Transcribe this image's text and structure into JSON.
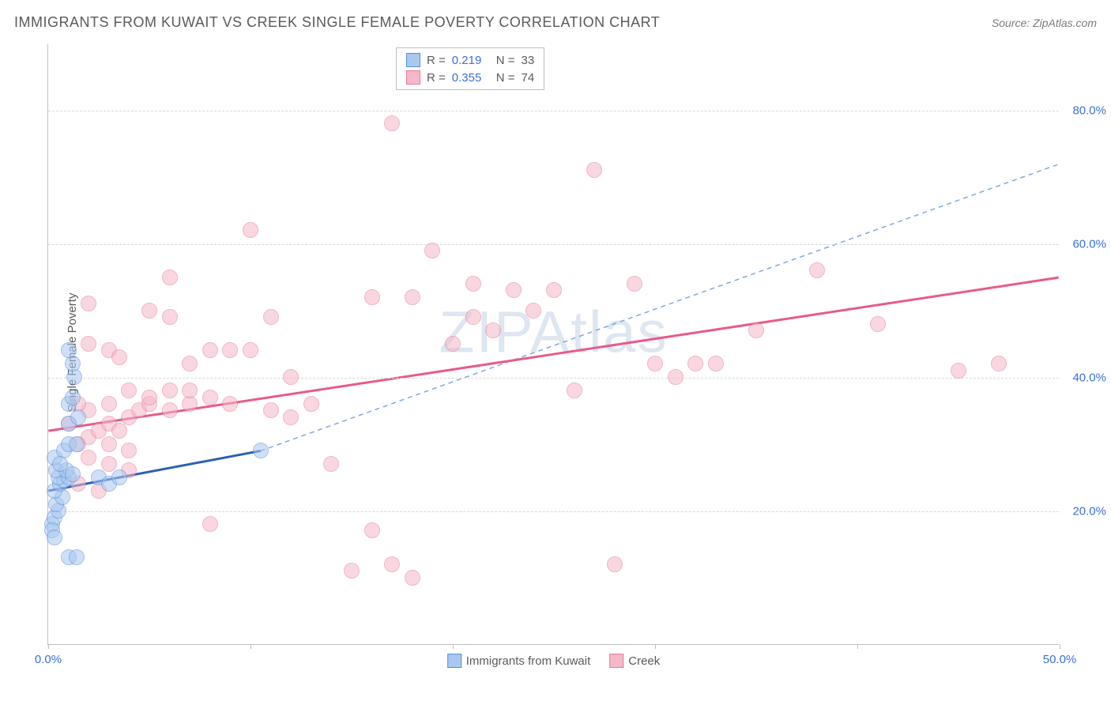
{
  "title": "IMMIGRANTS FROM KUWAIT VS CREEK SINGLE FEMALE POVERTY CORRELATION CHART",
  "source_label": "Source: ZipAtlas.com",
  "ylabel": "Single Female Poverty",
  "watermark": "ZIPAtlas",
  "chart": {
    "type": "scatter",
    "background_color": "#ffffff",
    "grid_color": "#d8d8d8",
    "axis_color": "#bfbfbf",
    "tick_label_color": "#3a6fd8",
    "text_color": "#5a5a5a",
    "xlim": [
      0,
      50
    ],
    "ylim": [
      0,
      90
    ],
    "yticks": [
      20,
      40,
      60,
      80
    ],
    "ytick_labels": [
      "20.0%",
      "40.0%",
      "60.0%",
      "80.0%"
    ],
    "xticks": [
      0,
      10,
      20,
      30,
      40,
      50
    ],
    "xtick_labels_shown": {
      "0": "0.0%",
      "50": "50.0%"
    },
    "point_radius": 10,
    "point_opacity": 0.55,
    "series": [
      {
        "name": "Immigrants from Kuwait",
        "color_fill": "#a8c8f0",
        "color_stroke": "#5a8fd8",
        "R": "0.219",
        "N": "33",
        "trend": {
          "x1": 0,
          "y1": 23,
          "x2": 10.5,
          "y2": 29,
          "solid": true,
          "color": "#2a5fb8",
          "width": 3,
          "ext_x2": 50,
          "ext_y2": 72,
          "dash_color": "#7fa8e0"
        },
        "points": [
          [
            0.2,
            18
          ],
          [
            0.3,
            19
          ],
          [
            0.5,
            20
          ],
          [
            0.4,
            21
          ],
          [
            0.7,
            22
          ],
          [
            0.3,
            23
          ],
          [
            0.6,
            24
          ],
          [
            0.8,
            24.5
          ],
          [
            0.5,
            25
          ],
          [
            1.0,
            25
          ],
          [
            0.4,
            26
          ],
          [
            0.9,
            26
          ],
          [
            1.2,
            25.5
          ],
          [
            0.2,
            17
          ],
          [
            0.3,
            16
          ],
          [
            1.0,
            13
          ],
          [
            1.4,
            13
          ],
          [
            0.3,
            28
          ],
          [
            0.8,
            29
          ],
          [
            1.0,
            30
          ],
          [
            1.4,
            30
          ],
          [
            1.0,
            33
          ],
          [
            1.5,
            34
          ],
          [
            1.0,
            36
          ],
          [
            1.2,
            37
          ],
          [
            1.3,
            40
          ],
          [
            1.2,
            42
          ],
          [
            1.0,
            44
          ],
          [
            2.5,
            25
          ],
          [
            3.0,
            24
          ],
          [
            3.5,
            25
          ],
          [
            10.5,
            29
          ],
          [
            0.6,
            27
          ]
        ]
      },
      {
        "name": "Creek",
        "color_fill": "#f5b8c8",
        "color_stroke": "#e87a9a",
        "R": "0.355",
        "N": "74",
        "trend": {
          "x1": 0,
          "y1": 32,
          "x2": 50,
          "y2": 55,
          "solid": true,
          "color": "#e85a8a",
          "width": 3
        },
        "points": [
          [
            1.5,
            30
          ],
          [
            2,
            31
          ],
          [
            2.5,
            32
          ],
          [
            3,
            33
          ],
          [
            3.5,
            32
          ],
          [
            2,
            35
          ],
          [
            3,
            36
          ],
          [
            4,
            34
          ],
          [
            4.5,
            35
          ],
          [
            5,
            36
          ],
          [
            6,
            35
          ],
          [
            7,
            36
          ],
          [
            2,
            28
          ],
          [
            3,
            27
          ],
          [
            4,
            26
          ],
          [
            1.5,
            24
          ],
          [
            2.5,
            23
          ],
          [
            2,
            45
          ],
          [
            3,
            44
          ],
          [
            3.5,
            43
          ],
          [
            4,
            38
          ],
          [
            5,
            37
          ],
          [
            6,
            38
          ],
          [
            7,
            38
          ],
          [
            8,
            37
          ],
          [
            9,
            36
          ],
          [
            5,
            50
          ],
          [
            6,
            49
          ],
          [
            2,
            51
          ],
          [
            6,
            55
          ],
          [
            7,
            42
          ],
          [
            8,
            44
          ],
          [
            10,
            44
          ],
          [
            11,
            35
          ],
          [
            12,
            34
          ],
          [
            13,
            36
          ],
          [
            14,
            27
          ],
          [
            15,
            11
          ],
          [
            16,
            17
          ],
          [
            17,
            12
          ],
          [
            18,
            10
          ],
          [
            17,
            78
          ],
          [
            18,
            52
          ],
          [
            19,
            59
          ],
          [
            20,
            45
          ],
          [
            21,
            49
          ],
          [
            22,
            47
          ],
          [
            23,
            53
          ],
          [
            24,
            50
          ],
          [
            25,
            53
          ],
          [
            26,
            38
          ],
          [
            27,
            71
          ],
          [
            28,
            12
          ],
          [
            29,
            54
          ],
          [
            30,
            42
          ],
          [
            31,
            40
          ],
          [
            32,
            42
          ],
          [
            33,
            42
          ],
          [
            35,
            47
          ],
          [
            38,
            56
          ],
          [
            41,
            48
          ],
          [
            45,
            41
          ],
          [
            47,
            42
          ],
          [
            10,
            62
          ],
          [
            11,
            49
          ],
          [
            12,
            40
          ],
          [
            8,
            18
          ],
          [
            9,
            44
          ],
          [
            16,
            52
          ],
          [
            21,
            54
          ],
          [
            3,
            30
          ],
          [
            4,
            29
          ],
          [
            1,
            33
          ],
          [
            1.5,
            36
          ]
        ]
      }
    ]
  },
  "legend_top": {
    "rows": [
      {
        "swatch_fill": "#a8c8f0",
        "swatch_stroke": "#5a8fd8",
        "r_label": "R =",
        "r_val": "0.219",
        "n_label": "N =",
        "n_val": "33"
      },
      {
        "swatch_fill": "#f5b8c8",
        "swatch_stroke": "#e87a9a",
        "r_label": "R =",
        "r_val": "0.355",
        "n_label": "N =",
        "n_val": "74"
      }
    ]
  },
  "legend_bottom": {
    "items": [
      {
        "swatch_fill": "#a8c8f0",
        "swatch_stroke": "#5a8fd8",
        "label": "Immigrants from Kuwait"
      },
      {
        "swatch_fill": "#f5b8c8",
        "swatch_stroke": "#e87a9a",
        "label": "Creek"
      }
    ]
  }
}
